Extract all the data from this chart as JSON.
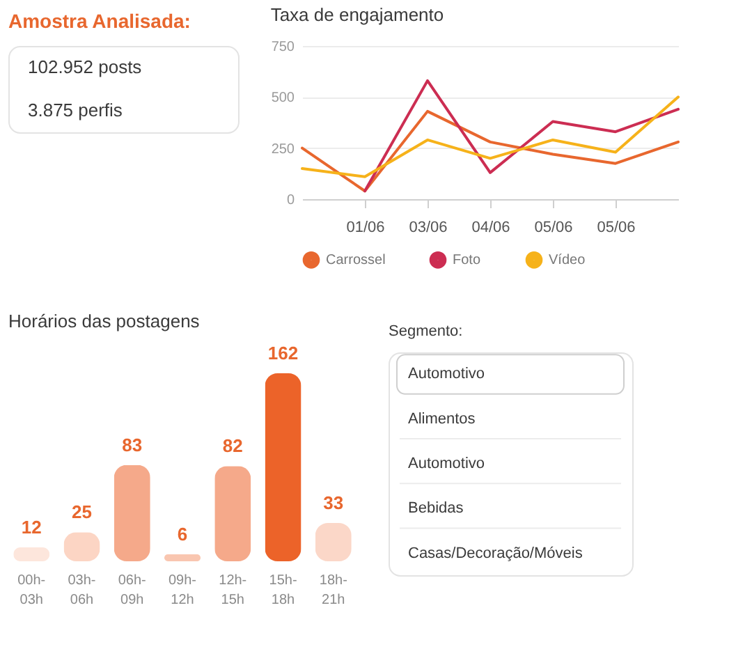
{
  "chart_data": [
    {
      "type": "other",
      "title": "Amostra Analisada:",
      "annotations": [
        "102.952 posts",
        "3.875 perfis"
      ]
    },
    {
      "type": "line",
      "title": "Taxa de engajamento",
      "categories": [
        null,
        "01/06",
        "03/06",
        "04/06",
        "05/06",
        "05/06",
        null
      ],
      "series": [
        {
          "name": "Carrossel",
          "color": "#e8672e",
          "values": [
            250,
            40,
            430,
            280,
            220,
            175,
            280
          ]
        },
        {
          "name": "Foto",
          "color": "#cc2d52",
          "values": [
            null,
            40,
            580,
            130,
            380,
            330,
            440
          ]
        },
        {
          "name": "Vídeo",
          "color": "#f6b21a",
          "values": [
            150,
            110,
            290,
            200,
            290,
            230,
            500
          ]
        }
      ],
      "ylim": [
        0,
        750
      ],
      "yticks": [
        0,
        250,
        500,
        750
      ],
      "grid": "y",
      "legend": "bottom",
      "line_style": "solid"
    },
    {
      "type": "bar",
      "title": "Horários das postagens",
      "categories": [
        "00h-03h",
        "03h-06h",
        "06h-09h",
        "09h-12h",
        "12h-15h",
        "15h-18h",
        "18h-21h"
      ],
      "values": [
        12,
        25,
        83,
        6,
        82,
        162,
        33
      ],
      "colors": [
        "#fde6dc",
        "#fcd5c4",
        "#f5a98a",
        "#f9c6b0",
        "#f5a98a",
        "#ec6329",
        "#fbd7c8"
      ],
      "data_labels": true,
      "tick_labels": "x"
    },
    {
      "type": "other",
      "title": "Segmento:",
      "annotations": [
        "Automotivo",
        "Alimentos",
        "Automotivo",
        "Bebidas",
        "Casas/Decoração/Móveis"
      ]
    }
  ]
}
